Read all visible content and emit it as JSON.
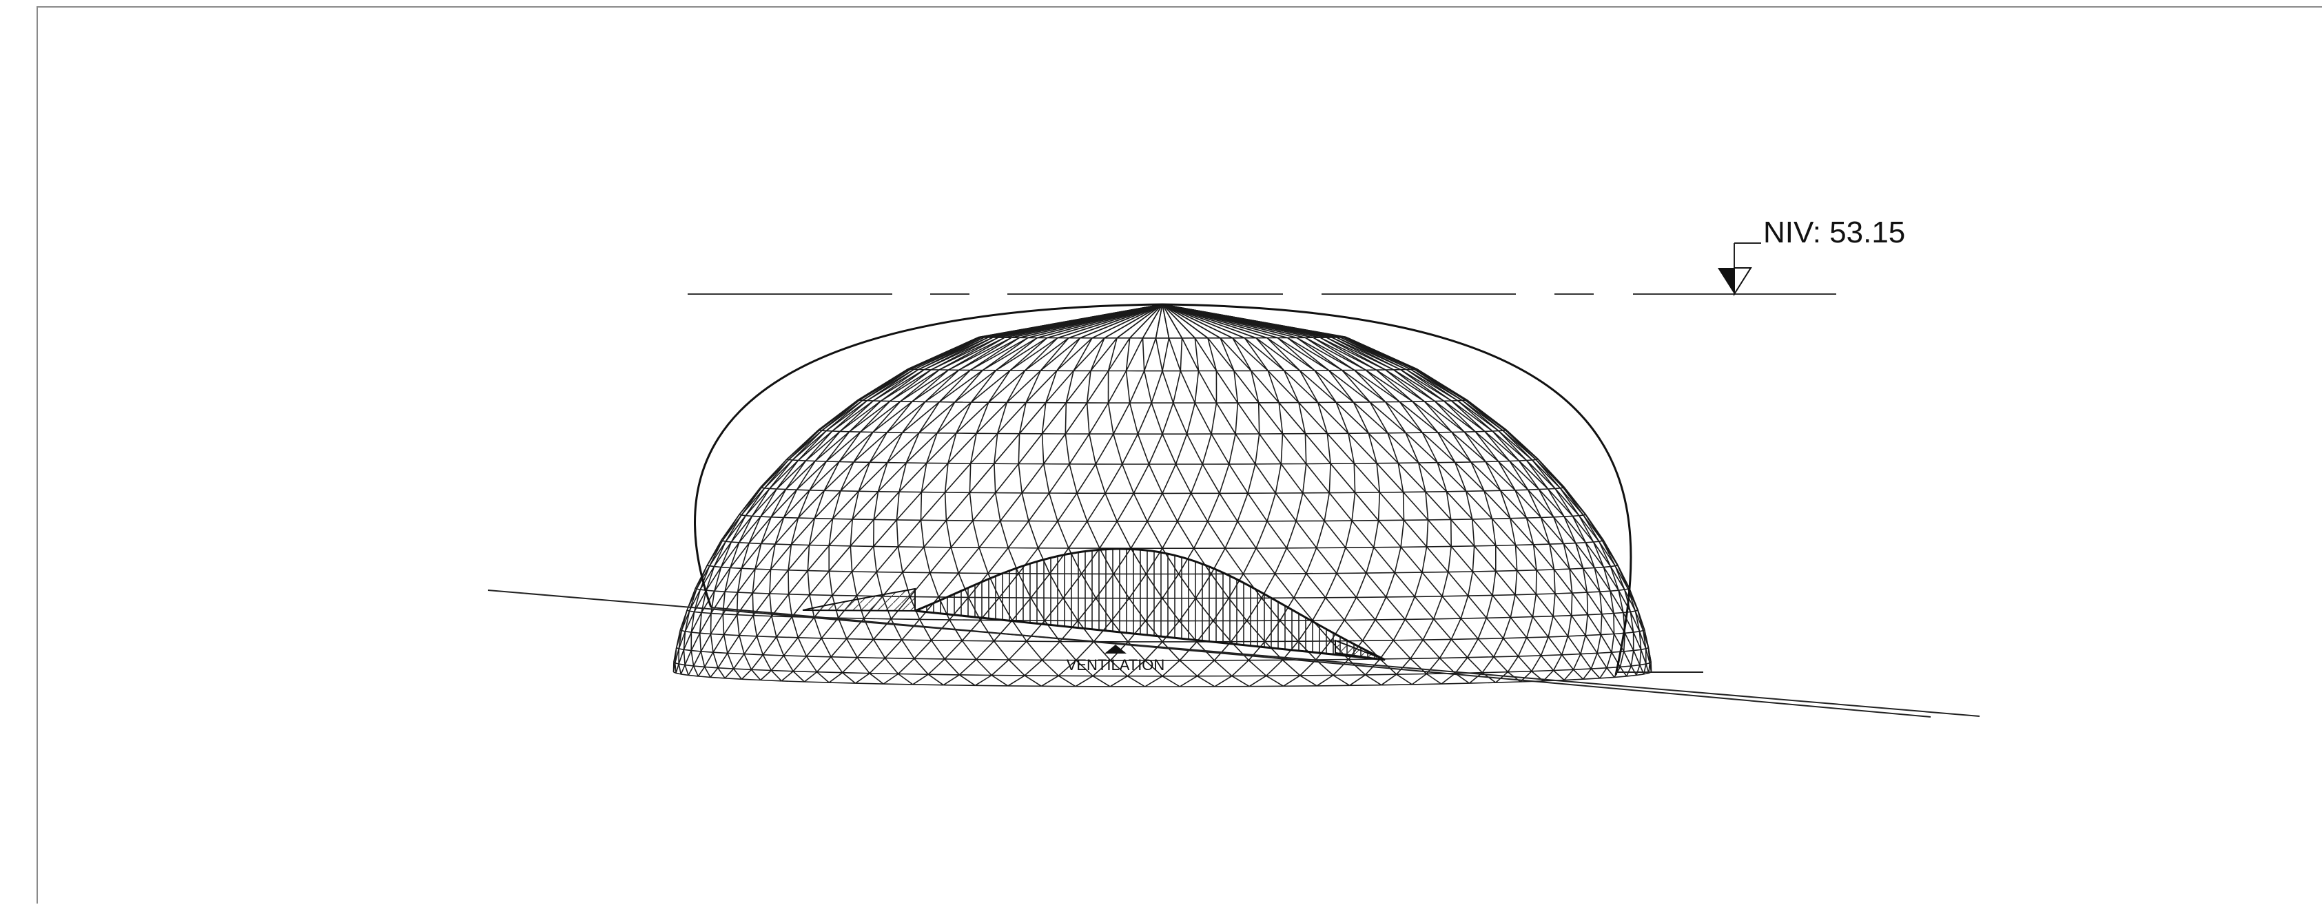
{
  "drawing": {
    "type": "architectural-elevation",
    "subject": "triangulated-dome-shell",
    "line_color": "#1a1a1a",
    "background": "#ffffff"
  },
  "labels": {
    "level": "NIV: 53.15",
    "ventilation": "VENTILATION"
  },
  "symbols": {
    "level_marker": "level-triangle-icon",
    "ventilation_marker": "up-triangle-icon"
  }
}
